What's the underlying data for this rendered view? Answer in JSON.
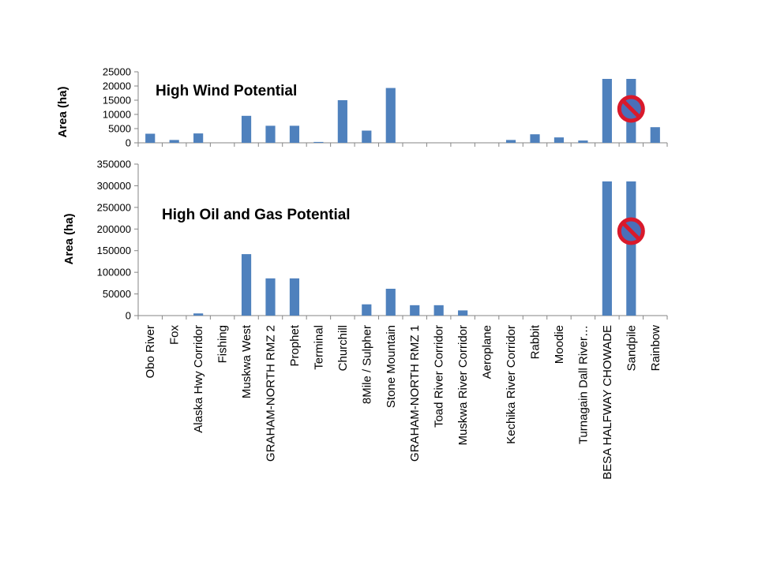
{
  "colors": {
    "bar": "#4f81bd",
    "axis": "#868686",
    "text": "#000000",
    "no_sign": "#d9192b",
    "no_sign_fill": "#4a6fb8"
  },
  "chart_data": [
    {
      "type": "bar",
      "title": "High Wind Potential",
      "ylabel": "Area (ha)",
      "ylim": [
        0,
        25000
      ],
      "yticks": [
        "0",
        "5000",
        "10000",
        "15000",
        "20000",
        "25000"
      ],
      "grid": false,
      "categories": [
        "Obo River",
        "Fox",
        "Alaska Hwy Corridor",
        "Fishing",
        "Muskwa West",
        "GRAHAM-NORTH RMZ 2",
        "Prophet",
        "Terminal",
        "Churchill",
        "8Mile / Sulpher",
        "Stone Mountain",
        "GRAHAM-NORTH RMZ 1",
        "Toad River Corridor",
        "Muskwa River Corridor",
        "Aeroplane",
        "Kechika River Corridor",
        "Rabbit",
        "Moodie",
        "Turnagain Dall River…",
        "BESA HALFWAY CHOWADE",
        "Sandpile",
        "Rainbow"
      ],
      "values": [
        3200,
        1000,
        3300,
        0,
        9500,
        6000,
        6000,
        300,
        15000,
        4300,
        19300,
        0,
        0,
        0,
        0,
        1000,
        3000,
        1900,
        800,
        22500,
        22500,
        5500
      ],
      "annotation": "no-symbol over Sandpile"
    },
    {
      "type": "bar",
      "title": "High Oil and Gas Potential",
      "ylabel": "Area (ha)",
      "ylim": [
        0,
        350000
      ],
      "yticks": [
        "0",
        "50000",
        "100000",
        "150000",
        "200000",
        "250000",
        "300000",
        "350000"
      ],
      "grid": false,
      "categories": [
        "Obo River",
        "Fox",
        "Alaska Hwy Corridor",
        "Fishing",
        "Muskwa West",
        "GRAHAM-NORTH RMZ 2",
        "Prophet",
        "Terminal",
        "Churchill",
        "8Mile / Sulpher",
        "Stone Mountain",
        "GRAHAM-NORTH RMZ 1",
        "Toad River Corridor",
        "Muskwa River Corridor",
        "Aeroplane",
        "Kechika River Corridor",
        "Rabbit",
        "Moodie",
        "Turnagain Dall River…",
        "BESA HALFWAY CHOWADE",
        "Sandpile",
        "Rainbow"
      ],
      "values": [
        0,
        0,
        5000,
        0,
        142000,
        86000,
        86000,
        0,
        0,
        26000,
        62000,
        24000,
        24000,
        12000,
        0,
        0,
        0,
        0,
        0,
        310000,
        310000,
        0
      ],
      "annotation": "no-symbol over Sandpile"
    }
  ]
}
